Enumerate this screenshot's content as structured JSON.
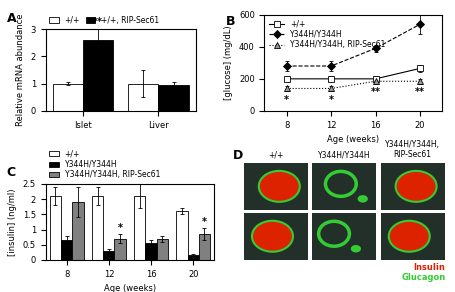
{
  "chart_data": [
    {
      "type": "bar",
      "label": "A",
      "categories": [
        "Islet",
        "Liver"
      ],
      "y_label": "Relative mRNA abundance",
      "ylim": [
        0,
        3
      ],
      "yticks": [
        0,
        1,
        2,
        3
      ],
      "legend": "lower left",
      "series": [
        {
          "name": "+/+",
          "color": "#ffffff",
          "values": [
            1.0,
            1.0
          ],
          "errors": [
            0.05,
            0.5
          ]
        },
        {
          "name": "+/+, RIP-Sec61",
          "color": "#000000",
          "values": [
            2.6,
            0.95
          ],
          "errors": [
            0.45,
            0.1
          ]
        }
      ],
      "annotations": [
        {
          "text": "**",
          "category": "Islet",
          "series": "+/+, RIP-Sec61",
          "y": 3.07
        }
      ]
    },
    {
      "type": "line",
      "label": "B",
      "x": [
        8,
        12,
        16,
        20
      ],
      "x_label": "Age (weeks)",
      "y_label": "[glucose] (mg/dL)",
      "xlim": [
        6,
        22
      ],
      "xticks": [
        8,
        12,
        16,
        20
      ],
      "ylim": [
        0,
        600
      ],
      "yticks": [
        0,
        200,
        400,
        600
      ],
      "legend": "upper left",
      "series": [
        {
          "name": "+/+",
          "color": "#ffffff",
          "marker": "square",
          "line_style": "solid",
          "values": [
            200,
            200,
            200,
            265
          ],
          "errors": [
            15,
            15,
            15,
            20
          ]
        },
        {
          "name": "Y344H/Y344H",
          "color": "#000000",
          "marker": "diamond",
          "line_style": "dashed",
          "values": [
            280,
            280,
            390,
            540
          ],
          "errors": [
            30,
            30,
            20,
            60
          ]
        },
        {
          "name": "Y344H/Y344H, RIP-Sec61",
          "color": "#999999",
          "marker": "triangle",
          "line_style": "dotted",
          "values": [
            140,
            140,
            185,
            185
          ],
          "errors": [
            15,
            15,
            15,
            15
          ]
        }
      ],
      "annotations": [
        {
          "text": "*",
          "x": 8,
          "y": 70
        },
        {
          "text": "*",
          "x": 12,
          "y": 70
        },
        {
          "text": "**",
          "x": 16,
          "y": 120
        },
        {
          "text": "**",
          "x": 20,
          "y": 120
        }
      ]
    },
    {
      "type": "bar",
      "label": "C",
      "categories": [
        "8",
        "12",
        "16",
        "20"
      ],
      "x_label": "Age (weeks)",
      "y_label": "[insulin] (ng/ml)",
      "ylim": [
        0,
        2.5
      ],
      "yticks": [
        0,
        0.5,
        1,
        1.5,
        2,
        2.5
      ],
      "legend": "lower left",
      "series": [
        {
          "name": "+/+",
          "color": "#ffffff",
          "values": [
            2.1,
            2.1,
            2.1,
            1.6
          ],
          "errors": [
            0.3,
            0.3,
            0.4,
            0.1
          ]
        },
        {
          "name": "Y344H/Y344H",
          "color": "#000000",
          "values": [
            0.65,
            0.3,
            0.55,
            0.15
          ],
          "errors": [
            0.15,
            0.05,
            0.1,
            0.05
          ]
        },
        {
          "name": "Y344H/Y344H, RIP-Sec61",
          "color": "#808080",
          "values": [
            1.9,
            0.7,
            0.7,
            0.85
          ],
          "errors": [
            0.5,
            0.15,
            0.1,
            0.2
          ]
        }
      ],
      "annotations": [
        {
          "text": "*",
          "category": "12",
          "series": "Y344H/Y344H, RIP-Sec61",
          "y": 0.87
        },
        {
          "text": "*",
          "category": "20",
          "series": "Y344H/Y344H, RIP-Sec61",
          "y": 1.07
        }
      ]
    },
    {
      "type": "micrograph",
      "label": "D",
      "columns": [
        "+/+",
        "Y344H/Y344H",
        "Y344H/Y344H, RIP-Sec61"
      ],
      "series": [
        {
          "name": "Insulin",
          "color": "#dd2200"
        },
        {
          "name": "Glucagon",
          "color": "#33cc33"
        }
      ]
    }
  ]
}
